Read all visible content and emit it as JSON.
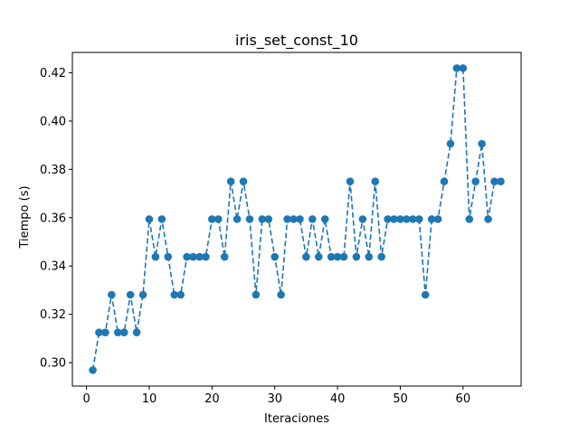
{
  "chart_data": {
    "type": "line",
    "title": "iris_set_const_10",
    "xlabel": "Iteraciones",
    "ylabel": "Tiempo (s)",
    "xlim": [
      -2.25,
      69.25
    ],
    "ylim": [
      0.2903,
      0.4284
    ],
    "xticks": [
      0,
      10,
      20,
      30,
      40,
      50,
      60
    ],
    "yticks": [
      0.3,
      0.32,
      0.34,
      0.36,
      0.38,
      0.4,
      0.42
    ],
    "ytick_labels": [
      "0.30",
      "0.32",
      "0.34",
      "0.36",
      "0.38",
      "0.40",
      "0.42"
    ],
    "grid": false,
    "line_style": "dashed",
    "marker": "circle",
    "color": "#1f77b4",
    "series": [
      {
        "x": [
          1,
          2,
          3,
          4,
          5,
          6,
          7,
          8,
          9,
          10,
          11,
          12,
          13,
          14,
          15,
          16,
          17,
          18,
          19,
          20,
          21,
          22,
          23,
          24,
          25,
          26,
          27,
          28,
          29,
          30,
          31,
          32,
          33,
          34,
          35,
          36,
          37,
          38,
          39,
          40,
          41,
          42,
          43,
          44,
          45,
          46,
          47,
          48,
          49,
          50,
          51,
          52,
          53,
          54,
          55,
          56,
          57,
          58,
          59,
          60,
          61,
          62,
          63,
          64,
          65,
          66
        ],
        "values": [
          0.2969,
          0.3125,
          0.3125,
          0.3281,
          0.3125,
          0.3125,
          0.3281,
          0.3125,
          0.3281,
          0.3594,
          0.3438,
          0.3594,
          0.3438,
          0.3281,
          0.3281,
          0.3438,
          0.3438,
          0.3438,
          0.3438,
          0.3594,
          0.3594,
          0.3438,
          0.375,
          0.3594,
          0.375,
          0.3594,
          0.3281,
          0.3594,
          0.3594,
          0.3438,
          0.3281,
          0.3594,
          0.3594,
          0.3594,
          0.3438,
          0.3594,
          0.3438,
          0.3594,
          0.3438,
          0.3438,
          0.3438,
          0.375,
          0.3438,
          0.3594,
          0.3438,
          0.375,
          0.3438,
          0.3594,
          0.3594,
          0.3594,
          0.3594,
          0.3594,
          0.3594,
          0.3281,
          0.3594,
          0.3594,
          0.375,
          0.3906,
          0.4219,
          0.4219,
          0.3594,
          0.375,
          0.3906,
          0.3594,
          0.375,
          0.375
        ]
      }
    ]
  }
}
